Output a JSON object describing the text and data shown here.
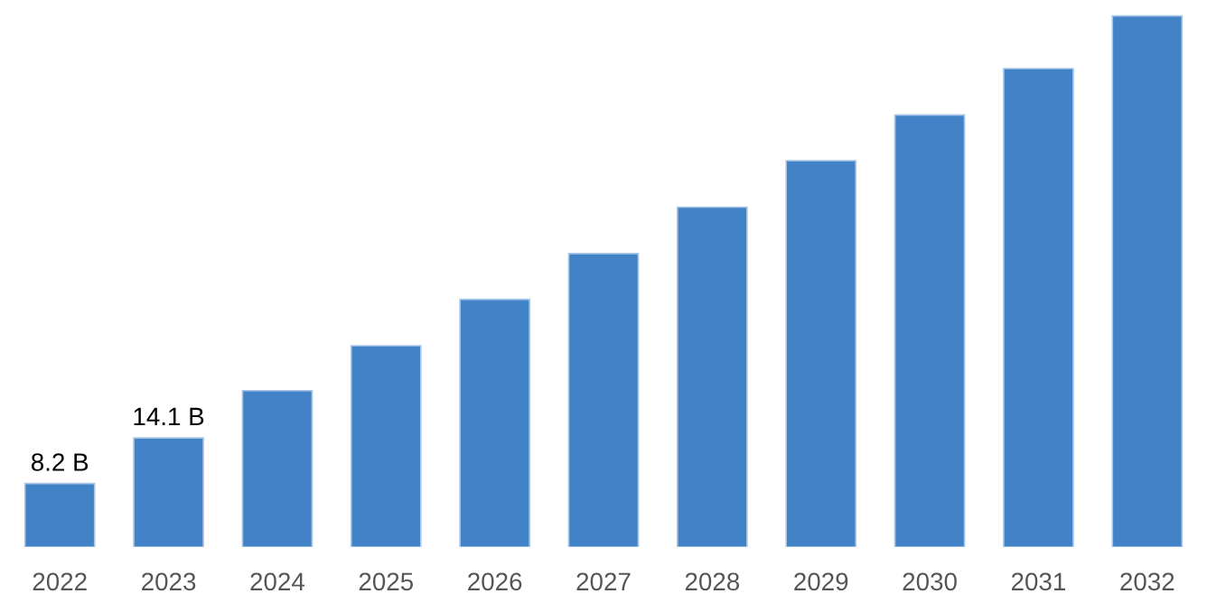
{
  "chart_data": {
    "type": "bar",
    "categories": [
      "2022",
      "2023",
      "2024",
      "2025",
      "2026",
      "2027",
      "2028",
      "2029",
      "2030",
      "2031",
      "2032"
    ],
    "values": [
      8.2,
      14.1,
      20.2,
      26.0,
      32.0,
      37.9,
      43.9,
      49.9,
      55.8,
      61.8,
      68.6
    ],
    "value_labels": [
      "8.2 B",
      "14.1 B",
      null,
      null,
      null,
      null,
      null,
      null,
      null,
      null,
      null
    ],
    "color": "#4282c6",
    "grid": false,
    "legend": false
  }
}
